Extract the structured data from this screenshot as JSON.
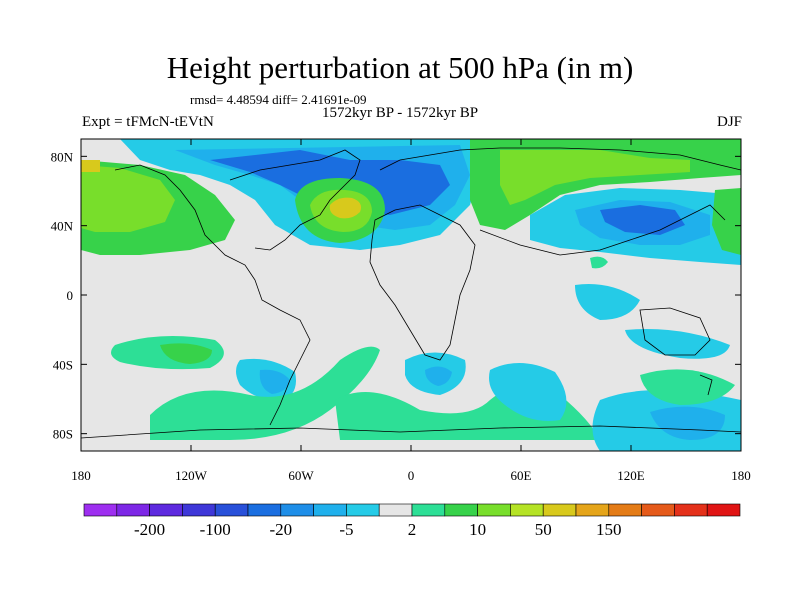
{
  "header": {
    "title": "Height perturbation at 500 hPa (in m)",
    "stats": "rmsd= 4.48594 diff= 2.41691e-09",
    "experiment": "Expt = tFMcN-tEVtN",
    "period": "1572kyr BP - 1572kyr BP",
    "season": "DJF"
  },
  "map": {
    "lat_labels": [
      "80N",
      "40N",
      "0",
      "40S",
      "80S"
    ],
    "lat_values": [
      80,
      40,
      0,
      -40,
      -80
    ],
    "lon_labels": [
      "180",
      "120W",
      "60W",
      "0",
      "60E",
      "120E",
      "180"
    ],
    "lon_values": [
      -180,
      -120,
      -60,
      0,
      60,
      120,
      180
    ],
    "lat_range": [
      -90,
      90
    ],
    "lon_range": [
      -180,
      180
    ],
    "background_color": "#e6e6e6"
  },
  "colorbar": {
    "colors": [
      "#9e2ff0",
      "#7d27e6",
      "#5e2adf",
      "#3e37d8",
      "#2850d9",
      "#1a6ee0",
      "#1e8ee8",
      "#1fb0ec",
      "#25cbe7",
      "#e6e6e6",
      "#2ddf96",
      "#37d24a",
      "#78de2b",
      "#b5e325",
      "#d8c91c",
      "#e5a51a",
      "#e47c17",
      "#e55a1a",
      "#e4311a",
      "#e01414"
    ],
    "labels": [
      "-200",
      "-100",
      "-20",
      "-5",
      "2",
      "10",
      "50",
      "150"
    ],
    "label_boundaries": [
      1,
      3,
      5,
      7,
      9,
      11,
      13,
      15
    ]
  },
  "palette": {
    "lightblue": "#25cbe7",
    "cyan": "#1fb0ec",
    "blue": "#1a6ee0",
    "aqua": "#2ddf96",
    "green": "#37d24a",
    "lime": "#78de2b",
    "yellow": "#d8c91c",
    "orange": "#e5a51a"
  }
}
